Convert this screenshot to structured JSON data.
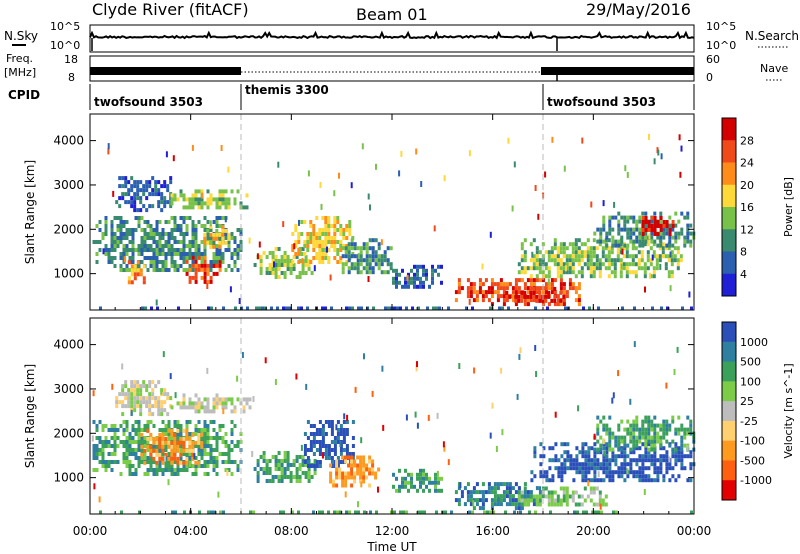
{
  "header": {
    "station": "Clyde River (fitACF)",
    "beam": "Beam 01",
    "date": "29/May/2016"
  },
  "status": {
    "nsky_label": "N.Sky",
    "nsky_ticks": [
      "10^5",
      "10^0"
    ],
    "nsearch_label": "N.Search",
    "freq_label_1": "Freq.",
    "freq_label_2": "[MHz]",
    "freq_ticks": [
      "18",
      "8"
    ],
    "nave_label": "Nave",
    "nave_ticks": [
      "60",
      "0"
    ],
    "cpid_label": "CPID"
  },
  "cpid": [
    {
      "name": "twofsound 3503",
      "start": 0,
      "end": 6
    },
    {
      "name": "themis 3300",
      "start": 6,
      "end": 18
    },
    {
      "name": "twofsound 3503",
      "start": 18,
      "end": 24
    }
  ],
  "colors": {
    "power": [
      "#1f1fd6",
      "#2b5fb0",
      "#3a8a70",
      "#79c24a",
      "#ffd83a",
      "#ff8c1a",
      "#f04a1a",
      "#d40000"
    ],
    "velocity": [
      "#2a4fb8",
      "#2f7fa0",
      "#3aa05a",
      "#7ccc4a",
      "#bdbdbd",
      "#ffd070",
      "#ff9a20",
      "#ff6010",
      "#e20000"
    ]
  },
  "chart_data": [
    {
      "type": "heatmap",
      "name": "power",
      "ylabel": "Slant Range [km]",
      "xlabel": "Time UT",
      "x_ticks": [
        "00:00",
        "04:00",
        "08:00",
        "12:00",
        "16:00",
        "20:00",
        "00:00"
      ],
      "y_ticks": [
        "1000",
        "2000",
        "3000",
        "4000"
      ],
      "xlim": [
        0,
        24
      ],
      "ylim": [
        180,
        4600
      ],
      "colorbar_label": "Power [dB]",
      "colorbar_ticks": [
        "4",
        "8",
        "12",
        "16",
        "20",
        "24",
        "28"
      ],
      "blobs": [
        {
          "t0": 0.1,
          "t1": 6.0,
          "r0": 1100,
          "r1": 2300,
          "level": 2
        },
        {
          "t0": 1.0,
          "t1": 3.2,
          "r0": 2400,
          "r1": 3200,
          "level": 1
        },
        {
          "t0": 3.2,
          "t1": 6.4,
          "r0": 2500,
          "r1": 2900,
          "level": 3
        },
        {
          "t0": 1.5,
          "t1": 2.2,
          "r0": 800,
          "r1": 1300,
          "level": 5
        },
        {
          "t0": 3.8,
          "t1": 5.2,
          "r0": 800,
          "r1": 1400,
          "level": 6
        },
        {
          "t0": 4.5,
          "t1": 5.5,
          "r0": 1600,
          "r1": 2100,
          "level": 4
        },
        {
          "t0": 6.5,
          "t1": 8.8,
          "r0": 900,
          "r1": 1600,
          "level": 3
        },
        {
          "t0": 8.0,
          "t1": 10.5,
          "r0": 1300,
          "r1": 2300,
          "level": 4
        },
        {
          "t0": 10.0,
          "t1": 12.0,
          "r0": 1000,
          "r1": 1800,
          "level": 2
        },
        {
          "t0": 12.0,
          "t1": 14.0,
          "r0": 700,
          "r1": 1200,
          "level": 1
        },
        {
          "t0": 14.5,
          "t1": 19.5,
          "r0": 350,
          "r1": 900,
          "level": 6
        },
        {
          "t0": 16.5,
          "t1": 19.0,
          "r0": 350,
          "r1": 700,
          "level": 7
        },
        {
          "t0": 17.0,
          "t1": 23.5,
          "r0": 900,
          "r1": 1800,
          "level": 3
        },
        {
          "t0": 20.0,
          "t1": 24.0,
          "r0": 1600,
          "r1": 2400,
          "level": 2
        },
        {
          "t0": 21.8,
          "t1": 23.2,
          "r0": 1900,
          "r1": 2300,
          "level": 7
        },
        {
          "t0": 0.0,
          "t1": 24.0,
          "r0": 180,
          "r1": 260,
          "level": 1
        }
      ]
    },
    {
      "type": "heatmap",
      "name": "velocity",
      "ylabel": "Slant Range [km]",
      "xlabel": "Time UT",
      "x_ticks": [
        "00:00",
        "04:00",
        "08:00",
        "12:00",
        "16:00",
        "20:00",
        "00:00"
      ],
      "y_ticks": [
        "1000",
        "2000",
        "3000",
        "4000"
      ],
      "xlim": [
        0,
        24
      ],
      "ylim": [
        180,
        4600
      ],
      "colorbar_label": "Velocity [m s^-1]",
      "colorbar_ticks": [
        "1000",
        "500",
        "100",
        "25",
        "-25",
        "-100",
        "-500",
        "-1000"
      ],
      "blobs": [
        {
          "t0": 0.1,
          "t1": 6.0,
          "r0": 1100,
          "r1": 2300,
          "level": 2
        },
        {
          "t0": 1.0,
          "t1": 3.2,
          "r0": 2400,
          "r1": 3200,
          "level": 4
        },
        {
          "t0": 3.2,
          "t1": 6.4,
          "r0": 2500,
          "r1": 2900,
          "level": 4
        },
        {
          "t0": 2.0,
          "t1": 4.5,
          "r0": 1300,
          "r1": 2100,
          "level": 6
        },
        {
          "t0": 6.5,
          "t1": 9.0,
          "r0": 900,
          "r1": 1600,
          "level": 2
        },
        {
          "t0": 8.5,
          "t1": 10.5,
          "r0": 1300,
          "r1": 2300,
          "level": 0
        },
        {
          "t0": 9.5,
          "t1": 11.5,
          "r0": 800,
          "r1": 1500,
          "level": 6
        },
        {
          "t0": 12.0,
          "t1": 14.0,
          "r0": 700,
          "r1": 1200,
          "level": 2
        },
        {
          "t0": 14.5,
          "t1": 18.0,
          "r0": 350,
          "r1": 900,
          "level": 1
        },
        {
          "t0": 17.0,
          "t1": 20.5,
          "r0": 350,
          "r1": 800,
          "level": 3
        },
        {
          "t0": 17.5,
          "t1": 24.0,
          "r0": 900,
          "r1": 1800,
          "level": 0
        },
        {
          "t0": 20.0,
          "t1": 24.0,
          "r0": 1600,
          "r1": 2400,
          "level": 2
        },
        {
          "t0": 0.0,
          "t1": 24.0,
          "r0": 180,
          "r1": 260,
          "level": 2
        }
      ]
    }
  ]
}
